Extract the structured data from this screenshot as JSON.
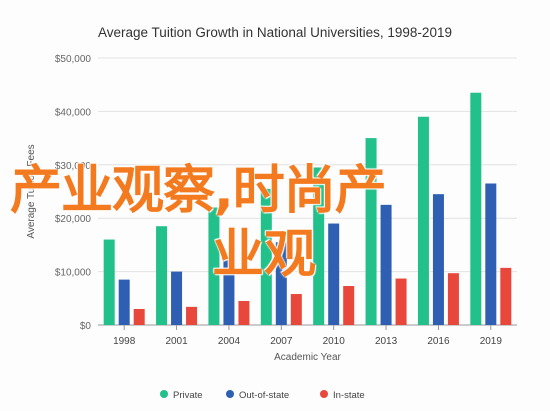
{
  "chart_data": {
    "type": "bar",
    "title": "Average Tuition Growth in National Universities, 1998-2019",
    "xlabel": "Academic Year",
    "ylabel": "Average Tuition Fees",
    "ylim": [
      0,
      50000
    ],
    "y_ticks": [
      "$0",
      "$10,000",
      "$20,000",
      "$30,000",
      "$40,000",
      "$50,000"
    ],
    "y_tick_values": [
      0,
      10000,
      20000,
      30000,
      40000,
      50000
    ],
    "categories": [
      "1998",
      "2001",
      "2004",
      "2007",
      "2010",
      "2013",
      "2016",
      "2019"
    ],
    "grid": true,
    "legend_position": "bottom",
    "series": [
      {
        "name": "Private",
        "color": "#22c08a",
        "values": [
          16000,
          18500,
          22000,
          25500,
          29500,
          35000,
          39000,
          43500
        ]
      },
      {
        "name": "Out-of-state",
        "color": "#2e5fb3",
        "values": [
          8500,
          10000,
          12500,
          15500,
          19000,
          22500,
          24500,
          26500
        ]
      },
      {
        "name": "In-state",
        "color": "#e8473c",
        "values": [
          3000,
          3400,
          4500,
          5800,
          7300,
          8700,
          9700,
          10700
        ]
      }
    ]
  },
  "watermark": {
    "line1": "产业观察,时尚产",
    "line2": "业观"
  }
}
